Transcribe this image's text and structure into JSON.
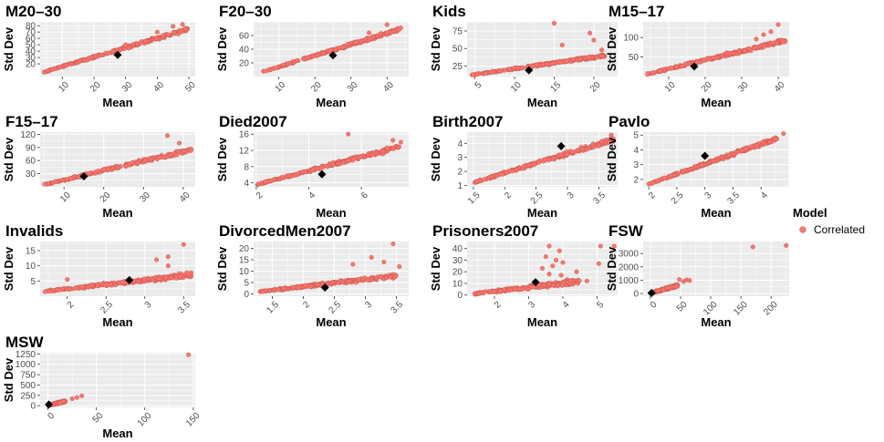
{
  "chart_data": {
    "type": "scatter",
    "legend": {
      "title": "Model",
      "entries": [
        {
          "label": "Correlated",
          "color": "#f8766d"
        }
      ],
      "position": "right"
    },
    "point_color": "#f8766d",
    "point_edge_color": "#c0504a",
    "highlight_marker": {
      "shape": "diamond",
      "color": "#000000"
    },
    "panel_background": "#ebebeb",
    "grid": true,
    "panels": [
      {
        "title": "M20–30",
        "xlabel": "Mean",
        "ylabel": "Std Dev",
        "xlim": [
          3,
          52
        ],
        "ylim": [
          0,
          86
        ],
        "xticks": [
          10,
          20,
          30,
          40,
          50
        ],
        "yticks": [
          20,
          30,
          40,
          50,
          60,
          70,
          80
        ],
        "cloud": {
          "x0": 4,
          "x1": 50,
          "y0": 7,
          "y1": 75,
          "spread": 3.5
        },
        "outliers": [
          [
            48,
            82
          ],
          [
            45,
            79
          ],
          [
            40,
            70
          ],
          [
            30,
            50
          ]
        ],
        "highlight": [
          27.5,
          34
        ]
      },
      {
        "title": "F20–30",
        "xlabel": "Mean",
        "ylabel": "Std Dev",
        "xlim": [
          3,
          46
        ],
        "ylim": [
          0,
          80
        ],
        "xticks": [
          10,
          20,
          30,
          40
        ],
        "yticks": [
          20,
          40,
          60
        ],
        "cloud": {
          "x0": 5,
          "x1": 44,
          "y0": 6,
          "y1": 70,
          "spread": 3
        },
        "outliers": [
          [
            40,
            76
          ],
          [
            35,
            64
          ]
        ],
        "highlight": [
          25,
          31
        ]
      },
      {
        "title": "Kids",
        "xlabel": "Mean",
        "ylabel": "Std Dev",
        "xlim": [
          4,
          23
        ],
        "ylim": [
          10,
          88
        ],
        "xticks": [
          5,
          10,
          15,
          20
        ],
        "yticks": [
          25,
          50,
          75
        ],
        "cloud": {
          "x0": 4.5,
          "x1": 21.5,
          "y0": 12,
          "y1": 40,
          "spread": 2.5
        },
        "outliers": [
          [
            15,
            86
          ],
          [
            19.5,
            72
          ],
          [
            20,
            62
          ],
          [
            16,
            55
          ],
          [
            21,
            48
          ]
        ],
        "highlight": [
          11.8,
          19
        ]
      },
      {
        "title": "M15–17",
        "xlabel": "Mean",
        "ylabel": "Std Dev",
        "xlim": [
          3,
          43
        ],
        "ylim": [
          0,
          140
        ],
        "xticks": [
          10,
          20,
          30,
          40
        ],
        "yticks": [
          50,
          100
        ],
        "cloud": {
          "x0": 4,
          "x1": 42,
          "y0": 6,
          "y1": 92,
          "spread": 7
        },
        "outliers": [
          [
            40,
            133
          ],
          [
            38,
            115
          ],
          [
            36,
            107
          ],
          [
            34,
            96
          ]
        ],
        "highlight": [
          17,
          26
        ]
      },
      {
        "title": "F15–17",
        "xlabel": "Mean",
        "ylabel": "Std Dev",
        "xlim": [
          4,
          43
        ],
        "ylim": [
          0,
          125
        ],
        "xticks": [
          10,
          20,
          30,
          40
        ],
        "yticks": [
          30,
          60,
          90,
          120
        ],
        "cloud": {
          "x0": 5,
          "x1": 42,
          "y0": 5,
          "y1": 85,
          "spread": 6
        },
        "outliers": [
          [
            36,
            117
          ],
          [
            39,
            100
          ]
        ],
        "highlight": [
          15,
          24
        ]
      },
      {
        "title": "Died2007",
        "xlabel": "Mean",
        "ylabel": "Std Dev",
        "xlim": [
          1.9,
          7.8
        ],
        "ylim": [
          3,
          16.5
        ],
        "xticks": [
          2,
          4,
          6
        ],
        "yticks": [
          4,
          8,
          12,
          16
        ],
        "cloud": {
          "x0": 2.0,
          "x1": 7.5,
          "y0": 3.5,
          "y1": 13,
          "spread": 0.7
        },
        "outliers": [
          [
            5.5,
            16
          ],
          [
            7.2,
            14.5
          ],
          [
            7.5,
            14
          ]
        ],
        "highlight": [
          4.5,
          6.1
        ]
      },
      {
        "title": "Birth2007",
        "xlabel": "Mean",
        "ylabel": "Std Dev",
        "xlim": [
          1.4,
          3.8
        ],
        "ylim": [
          0.9,
          4.8
        ],
        "xticks": [
          1.5,
          2.0,
          2.5,
          3.0,
          3.5
        ],
        "yticks": [
          1,
          2,
          3,
          4
        ],
        "cloud": {
          "x0": 1.5,
          "x1": 3.75,
          "y0": 1.2,
          "y1": 4.3,
          "spread": 0.22
        },
        "outliers": [
          [
            3.7,
            4.6
          ]
        ],
        "highlight": [
          2.9,
          3.8
        ]
      },
      {
        "title": "Pavlo",
        "xlabel": "Mean",
        "ylabel": "Std Dev",
        "xlim": [
          1.9,
          4.5
        ],
        "ylim": [
          1.5,
          5.2
        ],
        "xticks": [
          2.0,
          2.5,
          3.0,
          3.5,
          4.0
        ],
        "yticks": [
          2,
          3,
          4,
          5
        ],
        "cloud": {
          "x0": 2.0,
          "x1": 4.3,
          "y0": 1.7,
          "y1": 4.8,
          "spread": 0.18
        },
        "outliers": [
          [
            4.4,
            5.1
          ]
        ],
        "highlight": [
          3.0,
          3.6
        ]
      },
      {
        "title": "Invalids",
        "xlabel": "Mean",
        "ylabel": "Std Dev",
        "xlim": [
          1.65,
          3.65
        ],
        "ylim": [
          0,
          18
        ],
        "xticks": [
          2.0,
          2.5,
          3.0,
          3.5
        ],
        "yticks": [
          5,
          10,
          15
        ],
        "cloud": {
          "x0": 1.7,
          "x1": 3.6,
          "y0": 1.5,
          "y1": 7,
          "spread": 1.0
        },
        "outliers": [
          [
            3.5,
            17
          ],
          [
            3.3,
            13
          ],
          [
            3.15,
            12
          ],
          [
            3.3,
            10
          ],
          [
            2.0,
            5.5
          ]
        ],
        "highlight": [
          2.8,
          5.3
        ]
      },
      {
        "title": "DivorcedMen2007",
        "xlabel": "Mean",
        "ylabel": "Std Dev",
        "xlim": [
          1.2,
          3.7
        ],
        "ylim": [
          -1,
          23
        ],
        "xticks": [
          1.5,
          2.0,
          2.5,
          3.0,
          3.5
        ],
        "yticks": [
          0,
          5,
          10,
          15,
          20
        ],
        "cloud": {
          "x0": 1.3,
          "x1": 3.5,
          "y0": 1,
          "y1": 8,
          "spread": 1.2
        },
        "outliers": [
          [
            3.45,
            22
          ],
          [
            3.1,
            16
          ],
          [
            3.3,
            14
          ],
          [
            3.55,
            12
          ],
          [
            2.8,
            13
          ]
        ],
        "highlight": [
          2.35,
          2.8
        ]
      },
      {
        "title": "Prisoners2007",
        "xlabel": "Mean",
        "ylabel": "Std Dev",
        "xlim": [
          1.2,
          5.6
        ],
        "ylim": [
          -1,
          46
        ],
        "xticks": [
          2,
          3,
          4,
          5
        ],
        "yticks": [
          0,
          10,
          20,
          30,
          40
        ],
        "cloud": {
          "x0": 1.4,
          "x1": 4.5,
          "y0": 1,
          "y1": 12,
          "spread": 3
        },
        "outliers": [
          [
            3.6,
            42
          ],
          [
            5.1,
            42
          ],
          [
            5.5,
            42
          ],
          [
            3.9,
            38
          ],
          [
            3.5,
            33
          ],
          [
            3.8,
            30
          ],
          [
            4.0,
            28
          ],
          [
            3.7,
            25
          ],
          [
            5.05,
            27
          ],
          [
            3.4,
            23
          ],
          [
            4.4,
            20
          ],
          [
            3.6,
            18
          ],
          [
            4.7,
            12
          ],
          [
            3.95,
            17
          ]
        ],
        "highlight": [
          3.2,
          11
        ]
      },
      {
        "title": "FSW",
        "xlabel": "Mean",
        "ylabel": "Std Dev",
        "xlim": [
          -12,
          230
        ],
        "ylim": [
          -200,
          3900
        ],
        "xticks": [
          0,
          50,
          100,
          150,
          200
        ],
        "yticks": [
          0,
          1000,
          2000,
          3000
        ],
        "cloud": {
          "x0": 0,
          "x1": 45,
          "y0": 20,
          "y1": 600,
          "spread": 120
        },
        "outliers": [
          [
            48,
            1050
          ],
          [
            60,
            1020
          ],
          [
            65,
            980
          ],
          [
            55,
            900
          ],
          [
            170,
            3500
          ],
          [
            225,
            3600
          ]
        ],
        "highlight": [
          2,
          40
        ]
      },
      {
        "title": "MSW",
        "xlabel": "Mean",
        "ylabel": "Std Dev",
        "xlim": [
          -8,
          152
        ],
        "ylim": [
          -40,
          1280
        ],
        "xticks": [
          0,
          50,
          100,
          150
        ],
        "yticks": [
          0,
          250,
          500,
          750,
          1000,
          1250
        ],
        "cloud": {
          "x0": 0,
          "x1": 18,
          "y0": 5,
          "y1": 110,
          "spread": 25
        },
        "outliers": [
          [
            25,
            170
          ],
          [
            35,
            240
          ],
          [
            30,
            200
          ],
          [
            145,
            1230
          ]
        ],
        "highlight": [
          1,
          30
        ]
      }
    ]
  }
}
